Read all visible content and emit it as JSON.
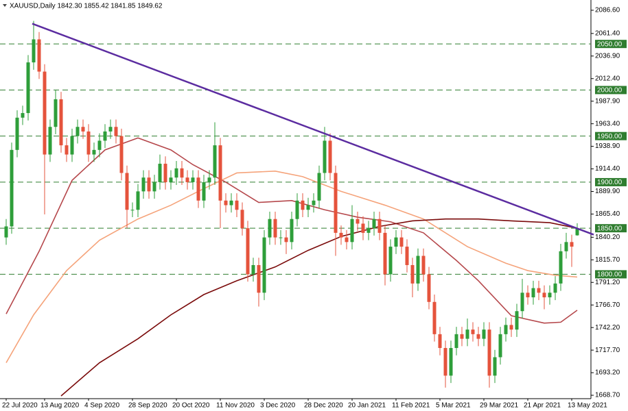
{
  "chart_data": {
    "type": "candlestick",
    "title": "XAUUSD,Daily  1842.30 1855.42 1841.85 1849.62",
    "categories": [
      "22 Jul 2020",
      null,
      null,
      null,
      null,
      null,
      null,
      "13 Aug 2020",
      null,
      null,
      null,
      null,
      null,
      null,
      null,
      "4 Sep 2020",
      null,
      null,
      null,
      null,
      null,
      null,
      null,
      "28 Sep 2020",
      null,
      null,
      null,
      null,
      null,
      null,
      null,
      "20 Oct 2020",
      null,
      null,
      null,
      null,
      null,
      null,
      null,
      "11 Nov 2020",
      null,
      null,
      null,
      null,
      null,
      null,
      null,
      "3 Dec 2020",
      null,
      null,
      null,
      null,
      null,
      null,
      null,
      "28 Dec 2020",
      null,
      null,
      null,
      null,
      null,
      null,
      null,
      "20 Jan 2021",
      null,
      null,
      null,
      null,
      null,
      null,
      null,
      "11 Feb 2021",
      null,
      null,
      null,
      null,
      null,
      null,
      null,
      "5 Mar 2021",
      null,
      null,
      null,
      null,
      null,
      null,
      null,
      "29 Mar 2021",
      null,
      null,
      null,
      null,
      null,
      null,
      null,
      "21 Apr 2021",
      null,
      null,
      null,
      null,
      null,
      null,
      null,
      "13 May 2021",
      null
    ],
    "open": [
      1840,
      1852,
      1935,
      1970,
      1975,
      2030,
      2055,
      2020,
      1930,
      1960,
      1990,
      1940,
      1930,
      1950,
      1960,
      1955,
      1930,
      1935,
      1945,
      1955,
      1960,
      1950,
      1910,
      1870,
      1870,
      1890,
      1905,
      1890,
      1900,
      1920,
      1900,
      1905,
      1915,
      1905,
      1900,
      1905,
      1880,
      1900,
      1905,
      1940,
      1880,
      1875,
      1880,
      1870,
      1850,
      1800,
      1810,
      1780,
      1840,
      1860,
      1840,
      1840,
      1835,
      1860,
      1880,
      1870,
      1875,
      1880,
      1910,
      1945,
      1910,
      1845,
      1840,
      1835,
      1860,
      1855,
      1845,
      1850,
      1860,
      1845,
      1800,
      1830,
      1840,
      1830,
      1810,
      1790,
      1820,
      1800,
      1770,
      1735,
      1720,
      1690,
      1720,
      1735,
      1730,
      1740,
      1735,
      1730,
      1740,
      1690,
      1710,
      1735,
      1745,
      1740,
      1760,
      1780,
      1775,
      1785,
      1780,
      1775,
      1780,
      1790,
      1825,
      1835,
      1842.3
    ],
    "high": [
      1860,
      1943,
      1978,
      1983,
      2038,
      2075,
      2063,
      2028,
      1968,
      2000,
      1998,
      1948,
      1958,
      1968,
      1968,
      1963,
      1943,
      1953,
      1963,
      1968,
      1968,
      1958,
      1918,
      1878,
      1898,
      1913,
      1913,
      1908,
      1930,
      1928,
      1913,
      1923,
      1923,
      1913,
      1913,
      1913,
      1908,
      1913,
      1965,
      1948,
      1888,
      1888,
      1888,
      1878,
      1858,
      1818,
      1818,
      1848,
      1868,
      1868,
      1848,
      1848,
      1868,
      1888,
      1888,
      1883,
      1888,
      1918,
      1960,
      1953,
      1918,
      1853,
      1848,
      1875,
      1868,
      1863,
      1858,
      1868,
      1868,
      1853,
      1838,
      1848,
      1848,
      1838,
      1818,
      1828,
      1828,
      1808,
      1778,
      1743,
      1728,
      1728,
      1743,
      1743,
      1752,
      1748,
      1743,
      1748,
      1748,
      1718,
      1743,
      1753,
      1753,
      1768,
      1795,
      1788,
      1793,
      1793,
      1788,
      1788,
      1798,
      1833,
      1845,
      1843,
      1855.42
    ],
    "low": [
      1832,
      1844,
      1927,
      1962,
      1967,
      2022,
      2012,
      1865,
      1922,
      1952,
      1932,
      1922,
      1922,
      1942,
      1947,
      1922,
      1922,
      1927,
      1937,
      1947,
      1942,
      1902,
      1850,
      1862,
      1862,
      1882,
      1882,
      1882,
      1892,
      1892,
      1892,
      1897,
      1897,
      1892,
      1892,
      1872,
      1872,
      1892,
      1897,
      1850,
      1867,
      1867,
      1862,
      1842,
      1792,
      1792,
      1765,
      1772,
      1832,
      1832,
      1832,
      1822,
      1827,
      1852,
      1862,
      1862,
      1867,
      1872,
      1902,
      1902,
      1820,
      1832,
      1827,
      1827,
      1847,
      1837,
      1837,
      1842,
      1837,
      1788,
      1792,
      1822,
      1822,
      1802,
      1775,
      1782,
      1792,
      1762,
      1727,
      1712,
      1677,
      1682,
      1712,
      1722,
      1722,
      1727,
      1722,
      1722,
      1677,
      1682,
      1702,
      1727,
      1732,
      1732,
      1752,
      1767,
      1767,
      1772,
      1762,
      1767,
      1772,
      1782,
      1817,
      1808,
      1841.85
    ],
    "close": [
      1852,
      1935,
      1970,
      1975,
      2030,
      2055,
      2020,
      1930,
      1960,
      1990,
      1940,
      1930,
      1950,
      1960,
      1955,
      1930,
      1935,
      1945,
      1955,
      1960,
      1950,
      1910,
      1870,
      1870,
      1890,
      1905,
      1890,
      1900,
      1920,
      1900,
      1905,
      1915,
      1905,
      1900,
      1905,
      1880,
      1900,
      1905,
      1940,
      1880,
      1875,
      1880,
      1870,
      1850,
      1800,
      1810,
      1780,
      1840,
      1860,
      1840,
      1840,
      1835,
      1860,
      1880,
      1870,
      1875,
      1880,
      1910,
      1945,
      1910,
      1845,
      1840,
      1835,
      1860,
      1855,
      1845,
      1850,
      1860,
      1845,
      1800,
      1830,
      1840,
      1830,
      1810,
      1790,
      1820,
      1800,
      1770,
      1735,
      1720,
      1690,
      1720,
      1735,
      1730,
      1740,
      1735,
      1730,
      1740,
      1690,
      1710,
      1735,
      1745,
      1740,
      1760,
      1780,
      1775,
      1785,
      1780,
      1775,
      1780,
      1790,
      1825,
      1835,
      1830,
      1849.62
    ],
    "up_color": "#2e9e3a",
    "down_color": "#e5533c",
    "moving_averages": [
      {
        "color": "#b5474b",
        "x": [
          0,
          6,
          12,
          18,
          24,
          30,
          34,
          40,
          46,
          52,
          58,
          64,
          70,
          76,
          82,
          86,
          92,
          98,
          101,
          104
        ],
        "values": [
          1757,
          1825,
          1902,
          1935,
          1948,
          1935,
          1919,
          1900,
          1878,
          1880,
          1870,
          1862,
          1857,
          1845,
          1815,
          1793,
          1755,
          1747,
          1748,
          1761
        ]
      },
      {
        "color": "#f5a37a",
        "x": [
          0,
          5,
          11,
          17,
          24,
          30,
          36,
          42,
          49,
          54,
          61,
          69,
          76,
          84,
          91,
          95,
          100,
          104
        ],
        "values": [
          1704,
          1756,
          1804,
          1837,
          1860,
          1875,
          1893,
          1910,
          1912,
          1906,
          1890,
          1875,
          1860,
          1830,
          1812,
          1804,
          1799,
          1797
        ]
      },
      {
        "color": "#7a0a0a",
        "x": [
          10,
          17,
          24,
          30,
          36,
          42,
          49,
          55,
          61,
          68,
          74,
          80,
          86,
          92,
          99,
          104
        ],
        "values": [
          1668,
          1704,
          1730,
          1756,
          1778,
          1793,
          1808,
          1826,
          1841,
          1852,
          1858,
          1860,
          1860,
          1858,
          1856,
          1850
        ]
      }
    ],
    "trendline": {
      "color": "#5b2ca0",
      "x": [
        4.75,
        107
      ],
      "values": [
        2072,
        1843
      ]
    },
    "levels": [
      {
        "value": 2050,
        "label": "2050.00"
      },
      {
        "value": 2000,
        "label": "2000.00"
      },
      {
        "value": 1950,
        "label": "1950.00"
      },
      {
        "value": 1900,
        "label": "1900.00"
      },
      {
        "value": 1850,
        "label": "1850.00"
      },
      {
        "value": 1800,
        "label": "1800.00"
      }
    ],
    "level_color": "#2f7d2f",
    "ylim": [
      1665,
      2094
    ],
    "yticks": [
      {
        "value": 2086.6,
        "label": "2086.60"
      },
      {
        "value": 2061.4,
        "label": "2061.40"
      },
      {
        "value": 2036.9,
        "label": "2036.90"
      },
      {
        "value": 2012.4,
        "label": "2012.40"
      },
      {
        "value": 1987.9,
        "label": "1987.90"
      },
      {
        "value": 1963.4,
        "label": "1963.40"
      },
      {
        "value": 1938.9,
        "label": "1938.90"
      },
      {
        "value": 1914.4,
        "label": "1914.40"
      },
      {
        "value": 1889.9,
        "label": "1889.90"
      },
      {
        "value": 1865.4,
        "label": "1865.40"
      },
      {
        "value": 1840.2,
        "label": "1840.20"
      },
      {
        "value": 1815.7,
        "label": "1815.70"
      },
      {
        "value": 1791.2,
        "label": "1791.20"
      },
      {
        "value": 1766.7,
        "label": "1766.70"
      },
      {
        "value": 1742.2,
        "label": "1742.20"
      },
      {
        "value": 1717.7,
        "label": "1717.70"
      },
      {
        "value": 1693.2,
        "label": "1693.20"
      },
      {
        "value": 1668.7,
        "label": "1668.70"
      }
    ]
  }
}
